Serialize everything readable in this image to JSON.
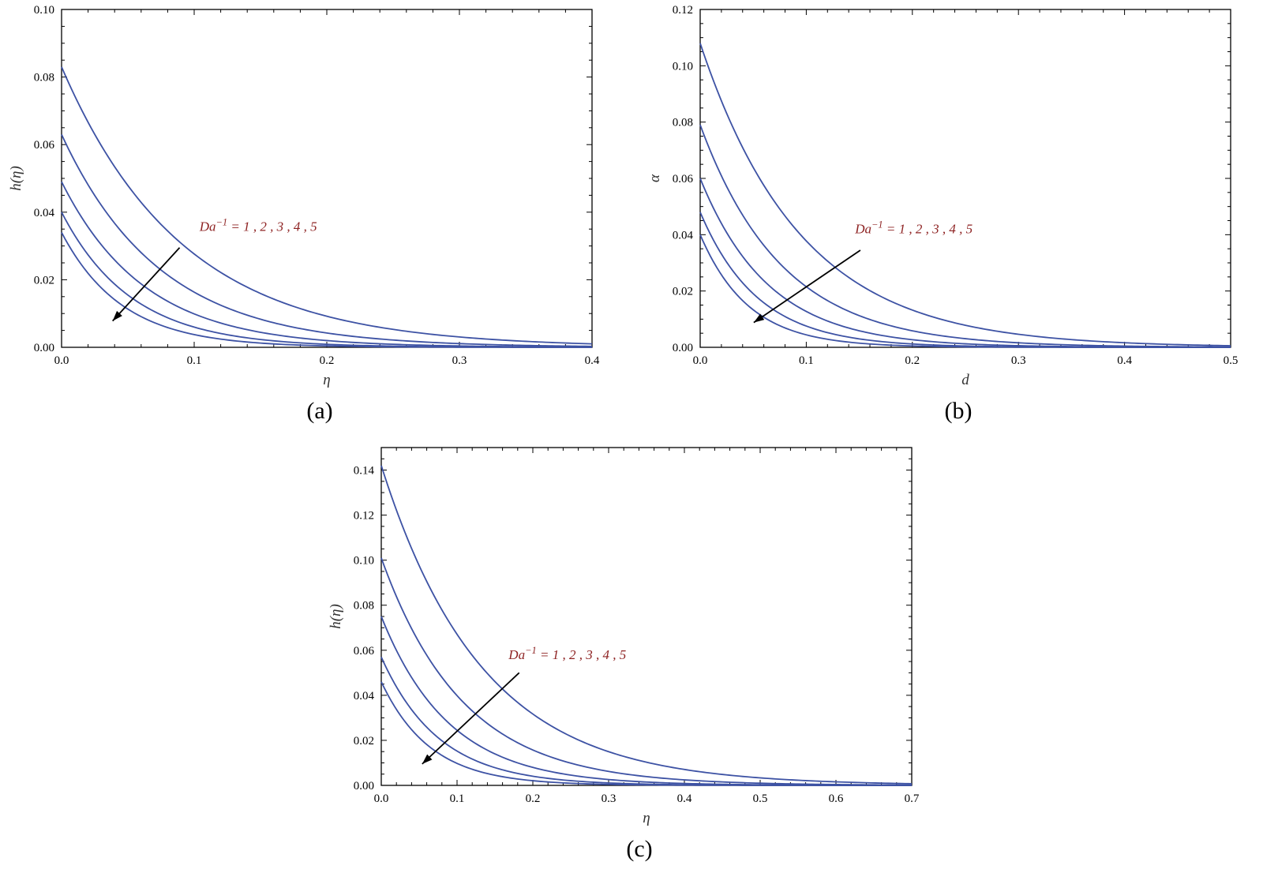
{
  "colors": {
    "curve": "#3D52A4",
    "annotation": "#8E2323",
    "axis": "#000000",
    "background": "#FFFFFF"
  },
  "chart_data": [
    {
      "type": "line",
      "panel": "(a)",
      "xlabel": "η",
      "ylabel": "h(η)",
      "xlim": [
        0,
        0.4
      ],
      "ylim": [
        0,
        0.1
      ],
      "xticks": [
        "0.0",
        "0.1",
        "0.2",
        "0.3",
        "0.4"
      ],
      "yticks": [
        "0.00",
        "0.02",
        "0.04",
        "0.06",
        "0.08",
        "0.10"
      ],
      "grid": false,
      "legend": "none",
      "curve_model": "y(x) = y0 · exp(−k·x)",
      "annotation": {
        "prefix": "Da",
        "sup": "−1",
        "suffix": " = 1 , 2 , 3 , 4 , 5",
        "x": 0.104,
        "y": 0.0345
      },
      "arrow": {
        "from": [
          0.089,
          0.0295
        ],
        "to": [
          0.0385,
          0.0078
        ]
      },
      "series": [
        {
          "id": "da-inv-1",
          "label": "Da⁻¹ = 1",
          "y0": 0.083,
          "k": 11.0
        },
        {
          "id": "da-inv-2",
          "label": "Da⁻¹ = 2",
          "y0": 0.063,
          "k": 13.5
        },
        {
          "id": "da-inv-3",
          "label": "Da⁻¹ = 3",
          "y0": 0.049,
          "k": 16.0
        },
        {
          "id": "da-inv-4",
          "label": "Da⁻¹ = 4",
          "y0": 0.04,
          "k": 19.0
        },
        {
          "id": "da-inv-5",
          "label": "Da⁻¹ = 5",
          "y0": 0.034,
          "k": 22.0
        }
      ]
    },
    {
      "type": "line",
      "panel": "(b)",
      "xlabel": "d",
      "ylabel": "α",
      "xlim": [
        0,
        0.5
      ],
      "ylim": [
        0,
        0.12
      ],
      "xticks": [
        "0.0",
        "0.1",
        "0.2",
        "0.3",
        "0.4",
        "0.5"
      ],
      "yticks": [
        "0.00",
        "0.02",
        "0.04",
        "0.06",
        "0.08",
        "0.10",
        "0.12"
      ],
      "grid": false,
      "legend": "none",
      "curve_model": "y(x) = y0 · exp(−k·x)",
      "annotation": {
        "prefix": "Da",
        "sup": "−1",
        "suffix": " = 1 , 2 , 3 , 4 , 5",
        "x": 0.146,
        "y": 0.0405
      },
      "arrow": {
        "from": [
          0.151,
          0.0345
        ],
        "to": [
          0.0505,
          0.0088
        ]
      },
      "series": [
        {
          "id": "da-inv-1",
          "label": "Da⁻¹ = 1",
          "y0": 0.108,
          "k": 10.5
        },
        {
          "id": "da-inv-2",
          "label": "Da⁻¹ = 2",
          "y0": 0.079,
          "k": 13.0
        },
        {
          "id": "da-inv-3",
          "label": "Da⁻¹ = 3",
          "y0": 0.06,
          "k": 15.5
        },
        {
          "id": "da-inv-4",
          "label": "Da⁻¹ = 4",
          "y0": 0.048,
          "k": 18.5
        },
        {
          "id": "da-inv-5",
          "label": "Da⁻¹ = 5",
          "y0": 0.04,
          "k": 22.0
        }
      ]
    },
    {
      "type": "line",
      "panel": "(c)",
      "xlabel": "η",
      "ylabel": "h(η)",
      "xlim": [
        0,
        0.7
      ],
      "ylim": [
        0,
        0.15
      ],
      "xticks": [
        "0.0",
        "0.1",
        "0.2",
        "0.3",
        "0.4",
        "0.5",
        "0.6",
        "0.7"
      ],
      "yticks": [
        "0.00",
        "0.02",
        "0.04",
        "0.06",
        "0.08",
        "0.10",
        "0.12",
        "0.14"
      ],
      "grid": false,
      "legend": "none",
      "curve_model": "y(x) = y0 · exp(−k·x)",
      "annotation": {
        "prefix": "Da",
        "sup": "−1",
        "suffix": " = 1 , 2 , 3 , 4 , 5",
        "x": 0.168,
        "y": 0.056
      },
      "arrow": {
        "from": [
          0.182,
          0.05
        ],
        "to": [
          0.054,
          0.0095
        ]
      },
      "series": [
        {
          "id": "da-inv-1",
          "label": "Da⁻¹ = 1",
          "y0": 0.142,
          "k": 7.5
        },
        {
          "id": "da-inv-2",
          "label": "Da⁻¹ = 2",
          "y0": 0.101,
          "k": 9.3
        },
        {
          "id": "da-inv-3",
          "label": "Da⁻¹ = 3",
          "y0": 0.075,
          "k": 11.2
        },
        {
          "id": "da-inv-4",
          "label": "Da⁻¹ = 4",
          "y0": 0.057,
          "k": 13.2
        },
        {
          "id": "da-inv-5",
          "label": "Da⁻¹ = 5",
          "y0": 0.046,
          "k": 15.5
        }
      ]
    }
  ]
}
